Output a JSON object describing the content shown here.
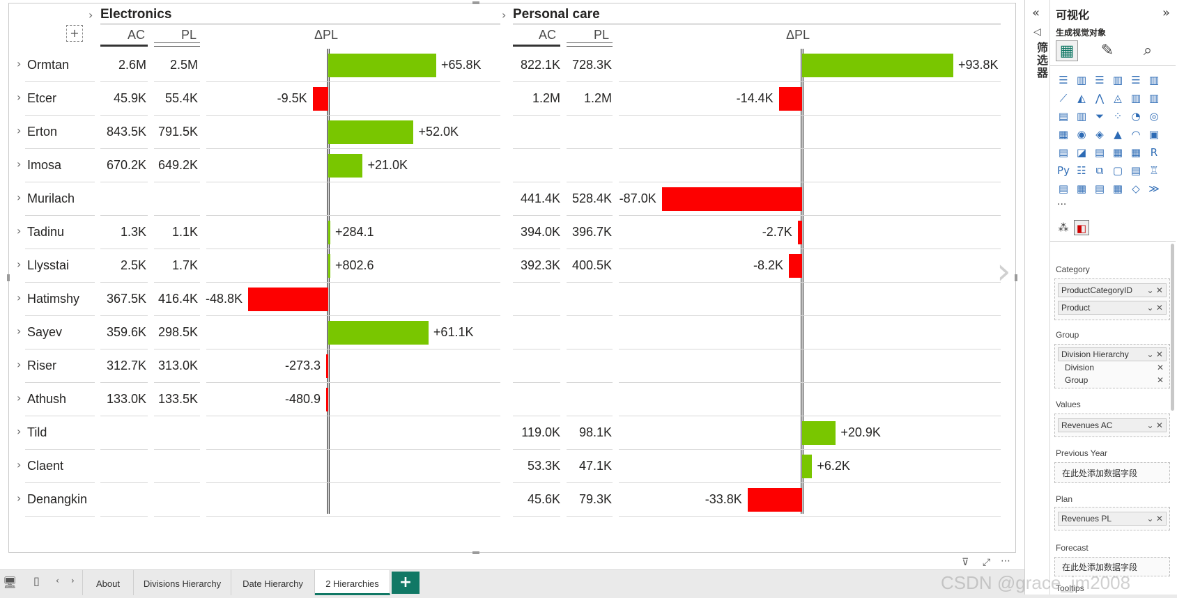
{
  "visual": {
    "groups": [
      {
        "title": "Electronics"
      },
      {
        "title": "Personal care"
      }
    ],
    "columns": {
      "ac": "AC",
      "pl": "PL",
      "delta": "ΔPL"
    },
    "add_button": "+",
    "rows": [
      {
        "label": "Ormtan",
        "e_ac": "2.6M",
        "e_pl": "2.5M",
        "e_delta": 65.8,
        "e_delta_label": "+65.8K",
        "p_ac": "822.1K",
        "p_pl": "728.3K",
        "p_delta": 93.8,
        "p_delta_label": "+93.8K"
      },
      {
        "label": "Etcer",
        "e_ac": "45.9K",
        "e_pl": "55.4K",
        "e_delta": -9.5,
        "e_delta_label": "-9.5K",
        "p_ac": "1.2M",
        "p_pl": "1.2M",
        "p_delta": -14.4,
        "p_delta_label": "-14.4K"
      },
      {
        "label": "Erton",
        "e_ac": "843.5K",
        "e_pl": "791.5K",
        "e_delta": 52.0,
        "e_delta_label": "+52.0K",
        "p_ac": "",
        "p_pl": "",
        "p_delta": null,
        "p_delta_label": ""
      },
      {
        "label": "Imosa",
        "e_ac": "670.2K",
        "e_pl": "649.2K",
        "e_delta": 21.0,
        "e_delta_label": "+21.0K",
        "p_ac": "",
        "p_pl": "",
        "p_delta": null,
        "p_delta_label": ""
      },
      {
        "label": "Murilach",
        "e_ac": "",
        "e_pl": "",
        "e_delta": null,
        "e_delta_label": "",
        "p_ac": "441.4K",
        "p_pl": "528.4K",
        "p_delta": -87.0,
        "p_delta_label": "-87.0K"
      },
      {
        "label": "Tadinu",
        "e_ac": "1.3K",
        "e_pl": "1.1K",
        "e_delta": 0.2841,
        "e_delta_label": "+284.1",
        "p_ac": "394.0K",
        "p_pl": "396.7K",
        "p_delta": -2.7,
        "p_delta_label": "-2.7K"
      },
      {
        "label": "Llysstai",
        "e_ac": "2.5K",
        "e_pl": "1.7K",
        "e_delta": 0.8026,
        "e_delta_label": "+802.6",
        "p_ac": "392.3K",
        "p_pl": "400.5K",
        "p_delta": -8.2,
        "p_delta_label": "-8.2K"
      },
      {
        "label": "Hatimshy",
        "e_ac": "367.5K",
        "e_pl": "416.4K",
        "e_delta": -48.8,
        "e_delta_label": "-48.8K",
        "p_ac": "",
        "p_pl": "",
        "p_delta": null,
        "p_delta_label": ""
      },
      {
        "label": "Sayev",
        "e_ac": "359.6K",
        "e_pl": "298.5K",
        "e_delta": 61.1,
        "e_delta_label": "+61.1K",
        "p_ac": "",
        "p_pl": "",
        "p_delta": null,
        "p_delta_label": ""
      },
      {
        "label": "Riser",
        "e_ac": "312.7K",
        "e_pl": "313.0K",
        "e_delta": -0.2733,
        "e_delta_label": "-273.3",
        "p_ac": "",
        "p_pl": "",
        "p_delta": null,
        "p_delta_label": ""
      },
      {
        "label": "Athush",
        "e_ac": "133.0K",
        "e_pl": "133.5K",
        "e_delta": -0.4809,
        "e_delta_label": "-480.9",
        "p_ac": "",
        "p_pl": "",
        "p_delta": null,
        "p_delta_label": ""
      },
      {
        "label": "Tild",
        "e_ac": "",
        "e_pl": "",
        "e_delta": null,
        "e_delta_label": "",
        "p_ac": "119.0K",
        "p_pl": "98.1K",
        "p_delta": 20.9,
        "p_delta_label": "+20.9K"
      },
      {
        "label": "Claent",
        "e_ac": "",
        "e_pl": "",
        "e_delta": null,
        "e_delta_label": "",
        "p_ac": "53.3K",
        "p_pl": "47.1K",
        "p_delta": 6.2,
        "p_delta_label": "+6.2K"
      },
      {
        "label": "Denangkin",
        "e_ac": "",
        "e_pl": "",
        "e_delta": null,
        "e_delta_label": "",
        "p_ac": "45.6K",
        "p_pl": "79.3K",
        "p_delta": -33.8,
        "p_delta_label": "-33.8K"
      }
    ],
    "colors": {
      "positive": "#79c600",
      "negative": "#fd0000"
    }
  },
  "tabs": {
    "items": [
      "About",
      "Divisions Hierarchy",
      "Date Hierarchy",
      "2 Hierarchies"
    ],
    "active": "2 Hierarchies",
    "add_label": "+"
  },
  "filter_pane": {
    "label": "筛选器"
  },
  "viz_pane": {
    "title": "可视化",
    "subtitle": "生成视觉对象",
    "more": "...",
    "wells": {
      "category": {
        "label": "Category",
        "fields": [
          "ProductCategoryID",
          "Product"
        ]
      },
      "group": {
        "label": "Group",
        "field": "Division Hierarchy",
        "subfields": [
          "Division",
          "Group"
        ]
      },
      "values": {
        "label": "Values",
        "field": "Revenues AC"
      },
      "previous_year": {
        "label": "Previous Year",
        "placeholder": "在此处添加数据字段"
      },
      "plan": {
        "label": "Plan",
        "field": "Revenues PL"
      },
      "forecast": {
        "label": "Forecast",
        "placeholder": "在此处添加数据字段"
      },
      "tooltips": {
        "label": "Tooltips"
      }
    }
  },
  "watermark": "CSDN @grace_jm2008"
}
